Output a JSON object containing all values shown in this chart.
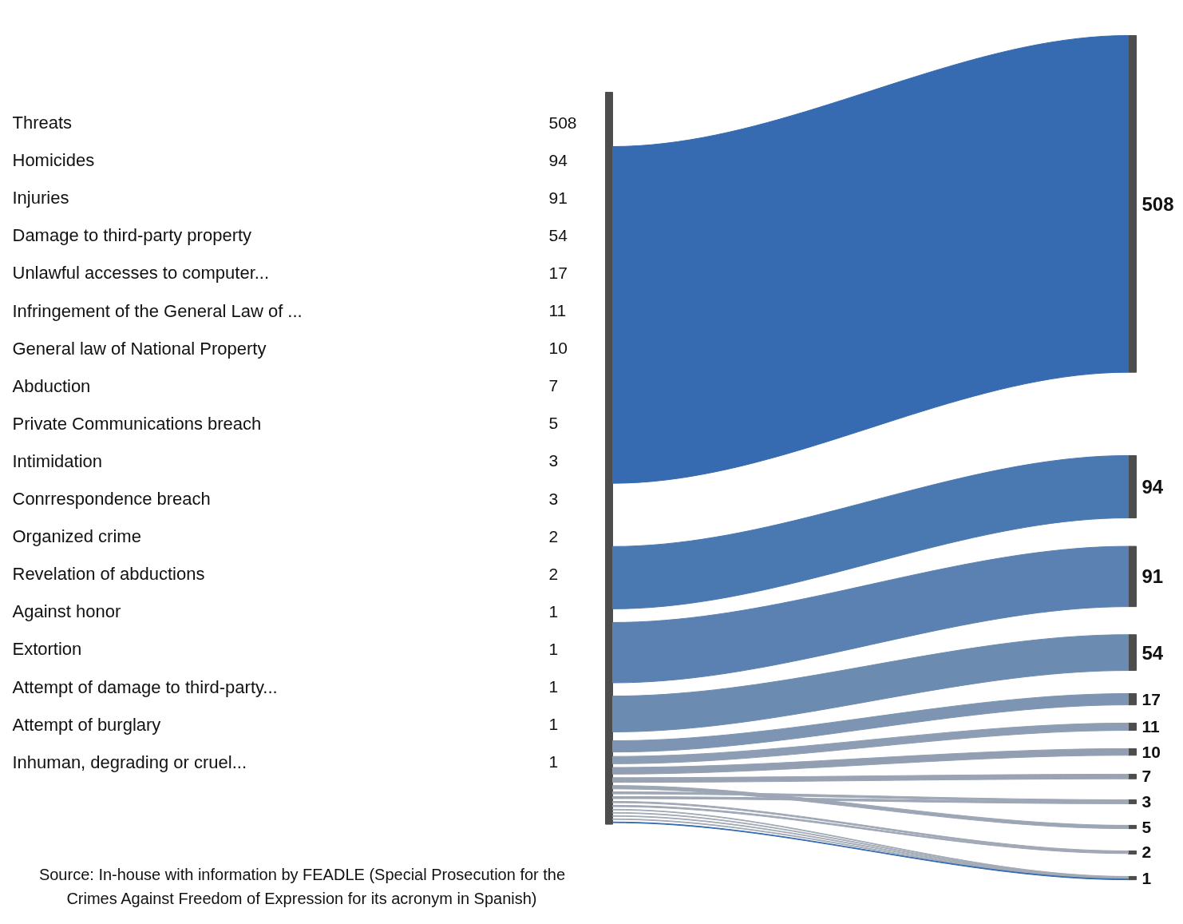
{
  "chart_data": {
    "type": "other",
    "categories": [
      "Threats",
      "Homicides",
      "Injuries",
      "Damage to third-party property",
      "Unlawful accesses to computer...",
      "Infringement of the General Law of ...",
      "General law of National Property",
      "Abduction",
      "Private Communications breach",
      "Intimidation",
      "Conrrespondence breach",
      "Organized crime",
      "Revelation of abductions",
      "Against honor",
      "Extortion",
      "Attempt of damage to third-party...",
      "Attempt of burglary",
      "Inhuman, degrading or cruel..."
    ],
    "values": [
      508,
      94,
      91,
      54,
      17,
      11,
      10,
      7,
      5,
      3,
      3,
      2,
      2,
      1,
      1,
      1,
      1,
      1
    ],
    "colors": [
      "#366ab1",
      "#4a78b1",
      "#5a81b2",
      "#6c8bb1",
      "#7d94b2",
      "#8c9db4",
      "#929fb3",
      "#99a3b3",
      "#9ca6b4",
      "#9ea7b5",
      "#9ea7b5",
      "#a0a8b5",
      "#a0a8b5",
      "#a2aab6",
      "#a2aab6",
      "#a2aab6",
      "#a2aab6",
      "#366ab1"
    ],
    "data_labels": true,
    "annotations": [
      "508",
      "94",
      "91",
      "54",
      "17",
      "11",
      "10",
      "7",
      "3",
      "5",
      "2",
      "1",
      "Source: In-house with information by FEADLE (Special Prosecution for the Crimes Against Freedom of Expression for its acronym in Spanish)"
    ]
  }
}
